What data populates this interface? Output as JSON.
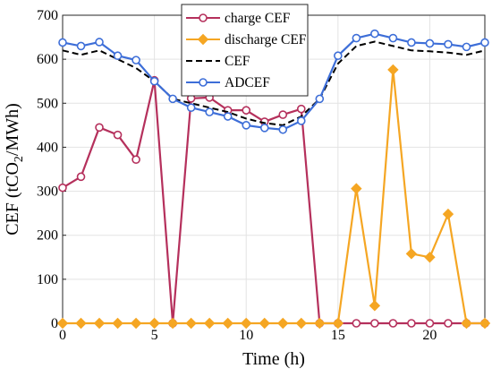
{
  "chart_data": {
    "type": "line",
    "xlabel": "Time (h)",
    "ylabel_main": "CEF (tCO",
    "ylabel_sub": "2",
    "ylabel_tail": "/MWh)",
    "xlim": [
      0,
      23
    ],
    "ylim": [
      0,
      700
    ],
    "xticks": [
      0,
      5,
      10,
      15,
      20
    ],
    "yticks": [
      0,
      100,
      200,
      300,
      400,
      500,
      600,
      700
    ],
    "grid": true,
    "legend_position": "top-center",
    "x": [
      0,
      1,
      2,
      3,
      4,
      5,
      6,
      7,
      8,
      9,
      10,
      11,
      12,
      13,
      14,
      15,
      16,
      17,
      18,
      19,
      20,
      21,
      22,
      23
    ],
    "series": [
      {
        "name": "charge CEF",
        "color": "#b5305c",
        "marker": "circle",
        "dash": "solid",
        "values": [
          308,
          333,
          445,
          428,
          372,
          552,
          0,
          511,
          513,
          484,
          484,
          458,
          474,
          487,
          0,
          0,
          0,
          0,
          0,
          0,
          0,
          0,
          0,
          0
        ]
      },
      {
        "name": "discharge CEF",
        "color": "#f5a623",
        "marker": "diamond",
        "dash": "solid",
        "values": [
          0,
          0,
          0,
          0,
          0,
          0,
          0,
          0,
          0,
          0,
          0,
          0,
          0,
          0,
          0,
          0,
          306,
          40,
          576,
          158,
          150,
          248,
          0,
          0
        ]
      },
      {
        "name": "CEF",
        "color": "#000000",
        "marker": "none",
        "dash": "dashed",
        "values": [
          620,
          610,
          620,
          600,
          580,
          550,
          510,
          500,
          490,
          480,
          465,
          455,
          450,
          470,
          510,
          590,
          630,
          640,
          630,
          620,
          618,
          615,
          610,
          620
        ]
      },
      {
        "name": "ADCEF",
        "color": "#3d6ed8",
        "marker": "circle",
        "dash": "solid",
        "values": [
          638,
          630,
          639,
          608,
          598,
          550,
          510,
          490,
          480,
          470,
          450,
          444,
          440,
          460,
          510,
          608,
          648,
          658,
          648,
          638,
          636,
          634,
          628,
          638
        ]
      }
    ]
  }
}
